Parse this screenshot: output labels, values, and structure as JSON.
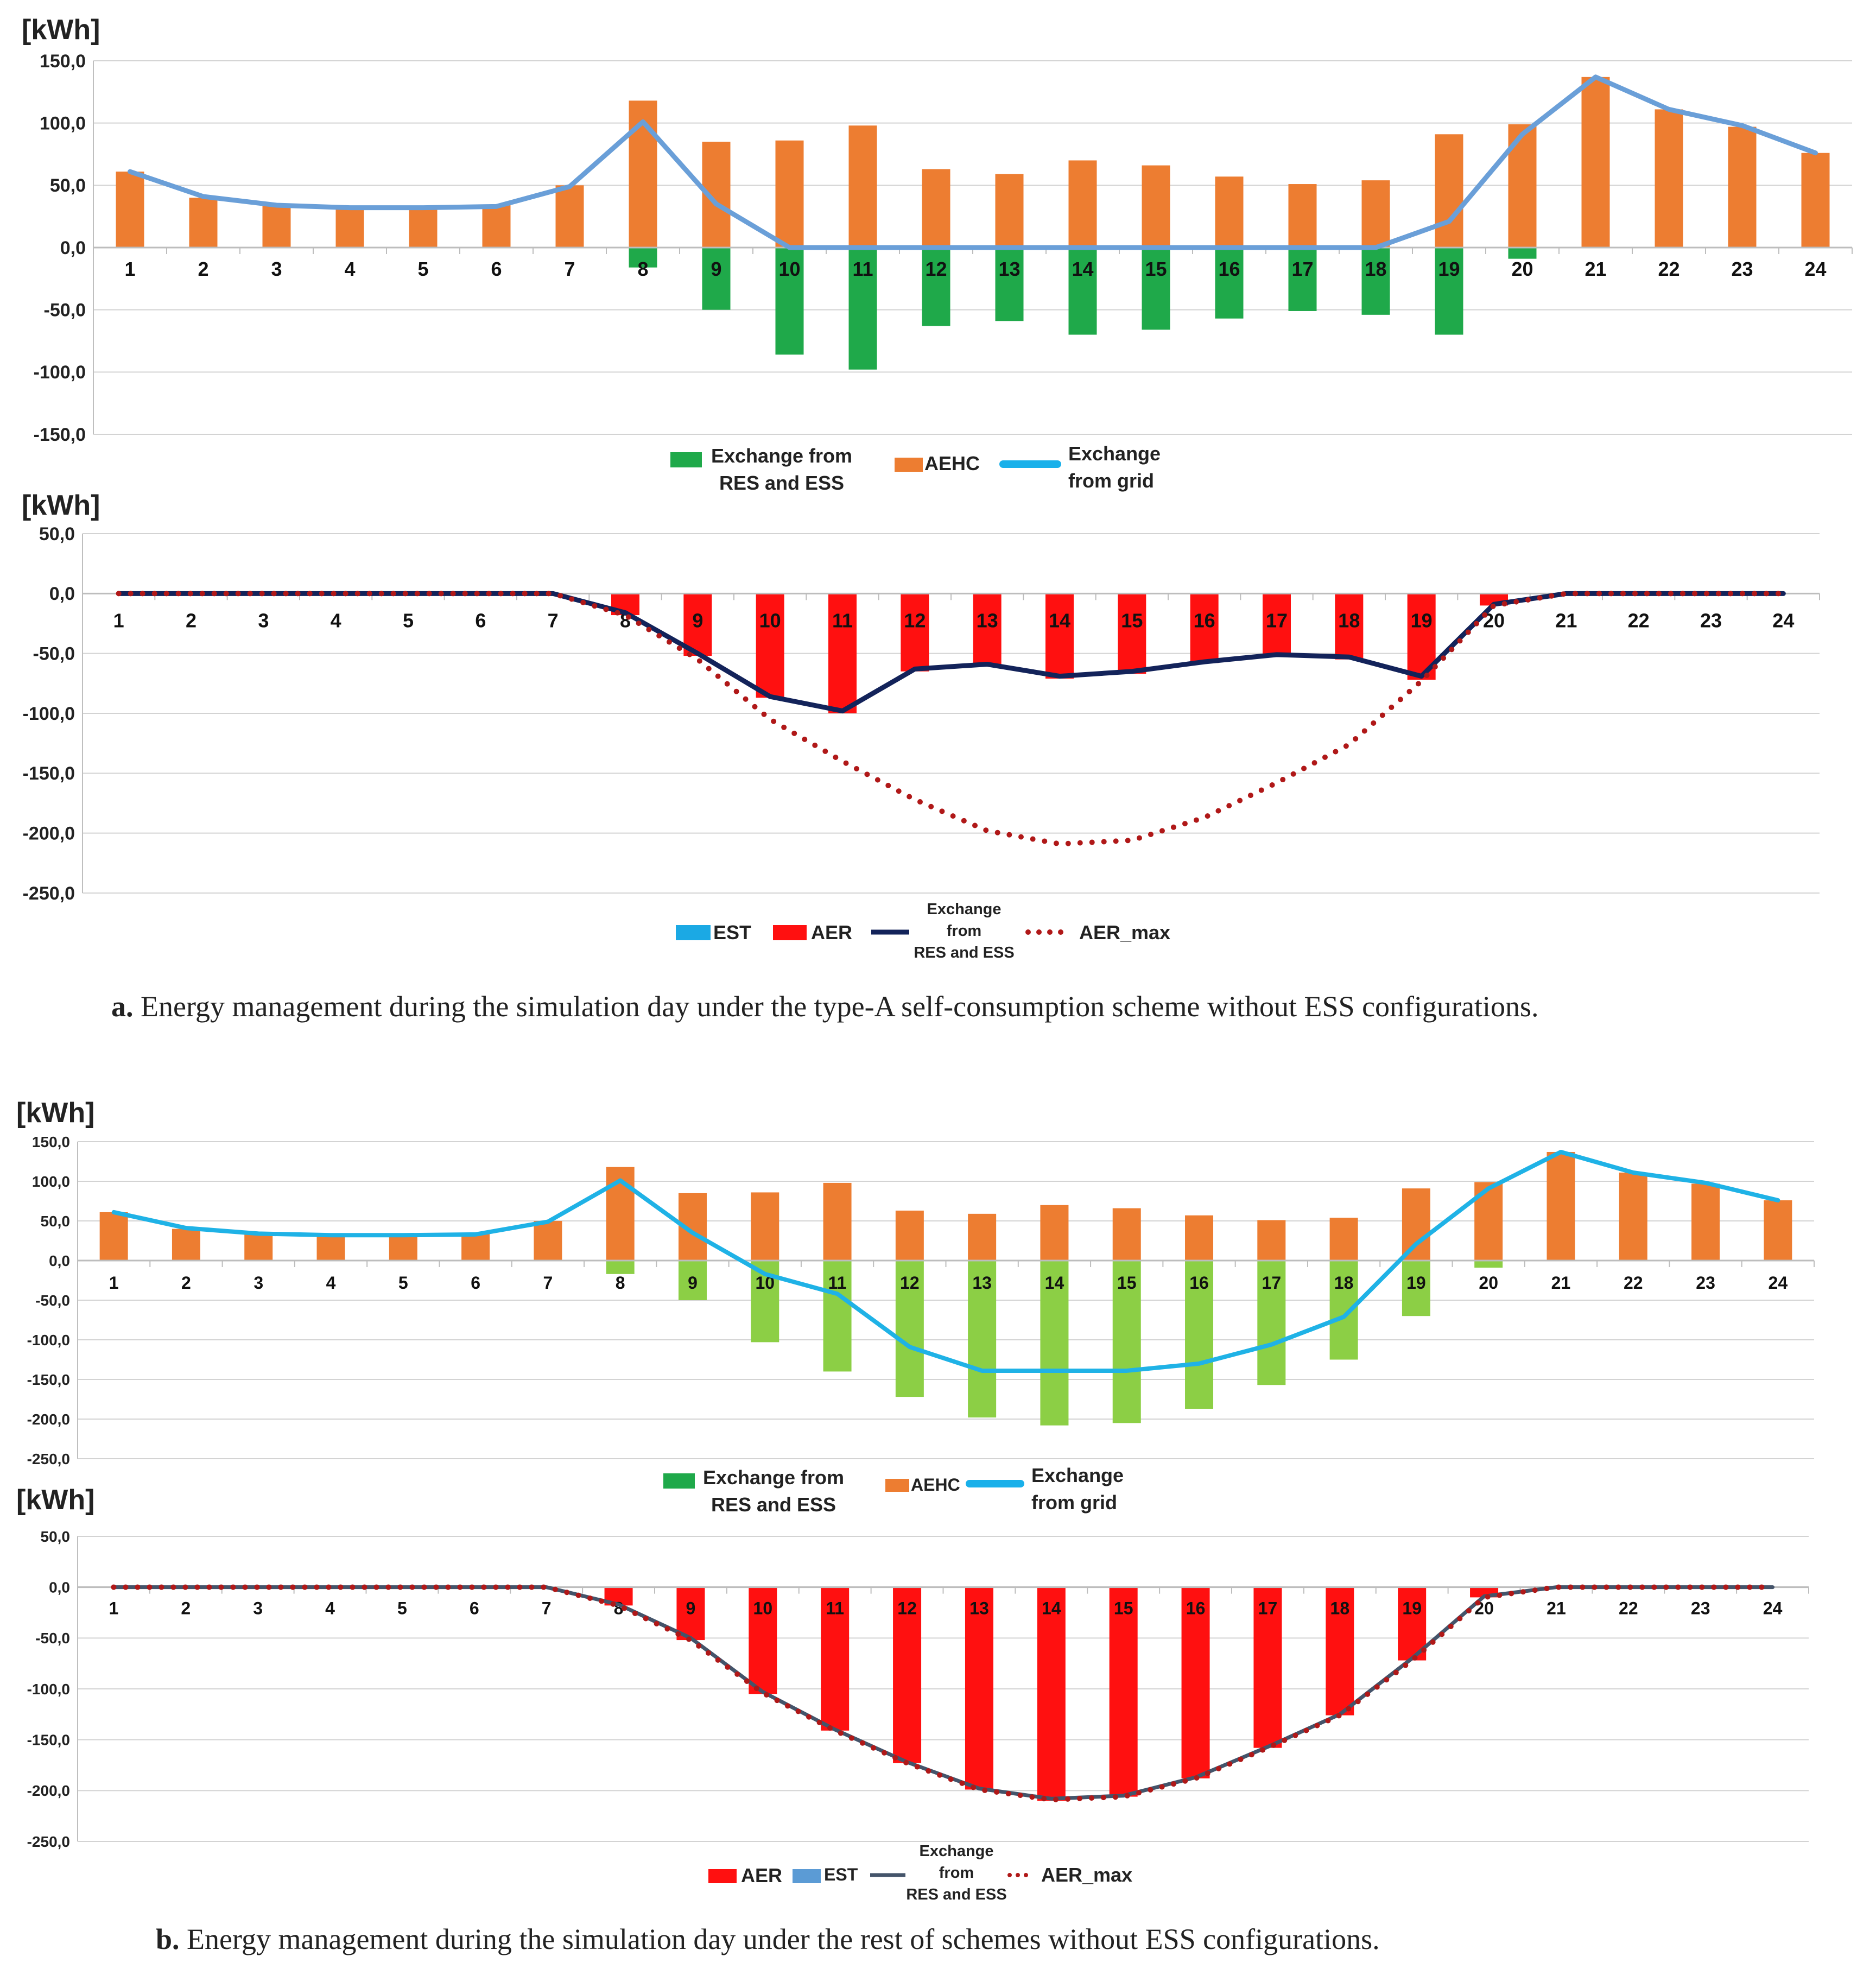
{
  "colors": {
    "res_ess_green_a": "#1fa94a",
    "res_ess_green_b": "#8ccf45",
    "aehc": "#ed7d31",
    "grid_line_a": "#6a9fd8",
    "grid_line_b": "#1fb2e6",
    "legend_grid": "#19b0ea",
    "est": "#1ba9e4",
    "est_b": "#5b9bd5",
    "aer": "#ff1010",
    "exchange_res": "#13235a",
    "exchange_res_b": "#44546a",
    "aer_max": "#b01818"
  },
  "chart_data": [
    {
      "type": "bar",
      "panel": "a-top",
      "unit_label": "[kWh]",
      "categories": [
        "1",
        "2",
        "3",
        "4",
        "5",
        "6",
        "7",
        "8",
        "9",
        "10",
        "11",
        "12",
        "13",
        "14",
        "15",
        "16",
        "17",
        "18",
        "19",
        "20",
        "21",
        "22",
        "23",
        "24"
      ],
      "ylim": [
        -150,
        150
      ],
      "yticks": [
        150,
        100,
        50,
        0,
        -50,
        -100,
        -150
      ],
      "ytick_labels": [
        "150,0",
        "100,0",
        "50,0",
        "0,0",
        "-50,0",
        "-100,0",
        "-150,0"
      ],
      "series": [
        {
          "name": "Exchange from RES and ESS",
          "kind": "bar",
          "values": [
            0,
            0,
            0,
            0,
            0,
            0,
            0,
            -16,
            -50,
            -86,
            -98,
            -63,
            -59,
            -70,
            -66,
            -57,
            -51,
            -54,
            -70,
            -9,
            0,
            0,
            0,
            0
          ]
        },
        {
          "name": "AEHC",
          "kind": "bar",
          "values": [
            61,
            40,
            34,
            33,
            33,
            34,
            50,
            118,
            85,
            86,
            98,
            63,
            59,
            70,
            66,
            57,
            51,
            54,
            91,
            99,
            137,
            111,
            97,
            76
          ]
        },
        {
          "name": "Exchange from grid",
          "kind": "line",
          "values": [
            61,
            41,
            34,
            32,
            32,
            33,
            49,
            101,
            35,
            0,
            0,
            0,
            0,
            0,
            0,
            0,
            0,
            0,
            21,
            91,
            137,
            111,
            98,
            76
          ]
        }
      ],
      "legend": [
        "Exchange from RES and ESS",
        "AEHC",
        "Exchange from grid"
      ]
    },
    {
      "type": "bar",
      "panel": "a-bottom",
      "unit_label": "[kWh]",
      "categories": [
        "1",
        "2",
        "3",
        "4",
        "5",
        "6",
        "7",
        "8",
        "9",
        "10",
        "11",
        "12",
        "13",
        "14",
        "15",
        "16",
        "17",
        "18",
        "19",
        "20",
        "21",
        "22",
        "23",
        "24"
      ],
      "ylim": [
        -250,
        50
      ],
      "yticks": [
        50,
        0,
        -50,
        -100,
        -150,
        -200,
        -250
      ],
      "ytick_labels": [
        "50,0",
        "0,0",
        "-50,0",
        "-100,0",
        "-150,0",
        "-200,0",
        "-250,0"
      ],
      "series": [
        {
          "name": "EST",
          "kind": "bar",
          "values": [
            0,
            0,
            0,
            0,
            0,
            0,
            0,
            0,
            0,
            0,
            0,
            0,
            0,
            0,
            0,
            0,
            0,
            0,
            0,
            0,
            0,
            0,
            0,
            0
          ]
        },
        {
          "name": "AER",
          "kind": "bar",
          "values": [
            0,
            0,
            0,
            0,
            0,
            0,
            0,
            -18,
            -52,
            -87,
            -100,
            -65,
            -60,
            -71,
            -67,
            -58,
            -52,
            -55,
            -72,
            -10,
            0,
            0,
            0,
            0
          ]
        },
        {
          "name": "Exchange from RES and ESS",
          "kind": "line",
          "values": [
            0,
            0,
            0,
            0,
            0,
            0,
            0,
            -16,
            -50,
            -86,
            -98,
            -63,
            -59,
            -69,
            -65,
            -57,
            -51,
            -53,
            -69,
            -9,
            0,
            0,
            0,
            0
          ]
        },
        {
          "name": "AER_max",
          "kind": "dotted",
          "values": [
            0,
            0,
            0,
            0,
            0,
            0,
            0,
            -18,
            -55,
            -105,
            -140,
            -172,
            -198,
            -209,
            -206,
            -187,
            -158,
            -126,
            -73,
            -10,
            0,
            0,
            0,
            0
          ]
        }
      ],
      "legend": [
        "EST",
        "AER",
        "Exchange from RES and ESS",
        "AER_max"
      ]
    },
    {
      "type": "bar",
      "panel": "b-top",
      "unit_label": "[kWh]",
      "categories": [
        "1",
        "2",
        "3",
        "4",
        "5",
        "6",
        "7",
        "8",
        "9",
        "10",
        "11",
        "12",
        "13",
        "14",
        "15",
        "16",
        "17",
        "18",
        "19",
        "20",
        "21",
        "22",
        "23",
        "24"
      ],
      "ylim": [
        -250,
        150
      ],
      "yticks": [
        150,
        100,
        50,
        0,
        -50,
        -100,
        -150,
        -200,
        -250
      ],
      "ytick_labels": [
        "150,0",
        "100,0",
        "50,0",
        "0,0",
        "-50,0",
        "-100,0",
        "-150,0",
        "-200,0",
        "-250,0"
      ],
      "series": [
        {
          "name": "Exchange from RES and ESS",
          "kind": "bar",
          "values": [
            0,
            0,
            0,
            0,
            0,
            0,
            0,
            -17,
            -50,
            -103,
            -140,
            -172,
            -198,
            -208,
            -205,
            -187,
            -157,
            -125,
            -70,
            -9,
            0,
            0,
            0,
            0
          ]
        },
        {
          "name": "AEHC",
          "kind": "bar",
          "values": [
            61,
            40,
            34,
            33,
            33,
            34,
            50,
            118,
            85,
            86,
            98,
            63,
            59,
            70,
            66,
            57,
            51,
            54,
            91,
            99,
            137,
            111,
            97,
            76
          ]
        },
        {
          "name": "Exchange from grid",
          "kind": "line",
          "values": [
            61,
            41,
            34,
            32,
            32,
            33,
            49,
            101,
            35,
            -17,
            -42,
            -109,
            -139,
            -139,
            -139,
            -130,
            -106,
            -71,
            21,
            91,
            137,
            111,
            98,
            76
          ]
        }
      ],
      "legend": [
        "Exchange from RES and ESS",
        "AEHC",
        "Exchange from grid"
      ]
    },
    {
      "type": "bar",
      "panel": "b-bottom",
      "unit_label": "[kWh]",
      "categories": [
        "1",
        "2",
        "3",
        "4",
        "5",
        "6",
        "7",
        "8",
        "9",
        "10",
        "11",
        "12",
        "13",
        "14",
        "15",
        "16",
        "17",
        "18",
        "19",
        "20",
        "21",
        "22",
        "23",
        "24"
      ],
      "ylim": [
        -250,
        50
      ],
      "yticks": [
        50,
        0,
        -50,
        -100,
        -150,
        -200,
        -250
      ],
      "ytick_labels": [
        "50,0",
        "0,0",
        "-50,0",
        "-100,0",
        "-150,0",
        "-200,0",
        "-250,0"
      ],
      "series": [
        {
          "name": "AER",
          "kind": "bar",
          "values": [
            0,
            0,
            0,
            0,
            0,
            0,
            0,
            -18,
            -52,
            -105,
            -141,
            -173,
            -199,
            -210,
            -206,
            -188,
            -158,
            -126,
            -72,
            -10,
            0,
            0,
            0,
            0
          ]
        },
        {
          "name": "EST",
          "kind": "bar",
          "values": [
            0,
            0,
            0,
            0,
            0,
            0,
            0,
            0,
            0,
            0,
            0,
            0,
            0,
            0,
            0,
            0,
            0,
            0,
            0,
            0,
            0,
            0,
            0,
            0
          ]
        },
        {
          "name": "Exchange from RES and ESS",
          "kind": "line",
          "values": [
            0,
            0,
            0,
            0,
            0,
            0,
            0,
            -17,
            -50,
            -103,
            -140,
            -172,
            -198,
            -208,
            -205,
            -187,
            -157,
            -125,
            -70,
            -9,
            0,
            0,
            0,
            0
          ]
        },
        {
          "name": "AER_max",
          "kind": "dotted",
          "values": [
            0,
            0,
            0,
            0,
            0,
            0,
            0,
            -18,
            -52,
            -104,
            -141,
            -173,
            -199,
            -209,
            -206,
            -188,
            -158,
            -126,
            -72,
            -10,
            0,
            0,
            0,
            0
          ]
        }
      ],
      "legend": [
        "AER",
        "EST",
        "Exchange from RES and ESS",
        "AER_max"
      ]
    }
  ],
  "legends": {
    "a_top": {
      "exchange_res_l1": "Exchange from",
      "exchange_res_l2": "RES and ESS",
      "aehc": "AEHC",
      "grid_l1": "Exchange",
      "grid_l2": "from grid"
    },
    "a_bottom": {
      "est": "EST",
      "aer": "AER",
      "ex_l1": "Exchange",
      "ex_l2": "from",
      "ex_l3": "RES and ESS",
      "aer_max": "AER_max"
    },
    "b_top": {
      "exchange_res_l1": "Exchange from",
      "exchange_res_l2": "RES and ESS",
      "aehc": "AEHC",
      "grid_l1": "Exchange",
      "grid_l2": "from grid"
    },
    "b_bottom": {
      "aer": "AER",
      "est": "EST",
      "ex_l1": "Exchange",
      "ex_l2": "from",
      "ex_l3": "RES and ESS",
      "aer_max": "AER_max"
    }
  },
  "captions": {
    "a_label": "a.",
    "a_text": " Energy management during the simulation day under the type-A self-consumption scheme without ESS configurations.",
    "b_label": "b.",
    "b_text": " Energy management during the simulation day under the rest of schemes without ESS configurations."
  }
}
